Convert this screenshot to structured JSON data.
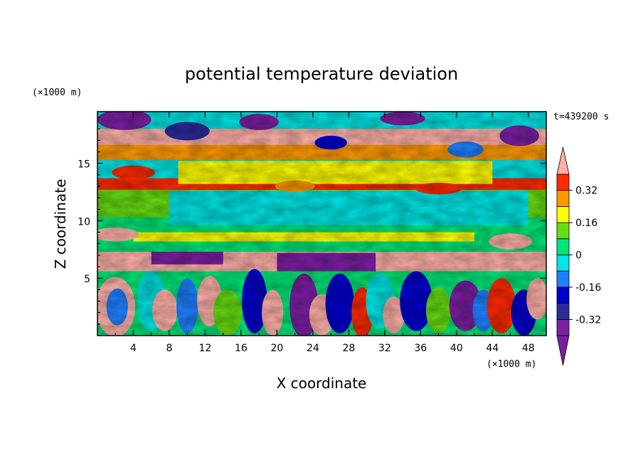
{
  "chart_data": {
    "type": "heatmap",
    "title": "potential temperature deviation",
    "xlabel": "X coordinate",
    "ylabel": "Z coordinate",
    "x_unit": "(×1000 m)",
    "y_unit": "(×1000 m)",
    "time_label": "t=439200 s",
    "xlim": [
      0,
      50
    ],
    "ylim": [
      0,
      19.5
    ],
    "x_ticks": [
      4,
      8,
      12,
      16,
      20,
      24,
      28,
      32,
      36,
      40,
      44,
      48
    ],
    "y_ticks": [
      5,
      10,
      15
    ],
    "colorbar": {
      "levels": [
        -0.4,
        -0.32,
        -0.24,
        -0.16,
        -0.08,
        0,
        0.08,
        0.16,
        0.24,
        0.32,
        0.4
      ],
      "labels": [
        "-0.32",
        "-0.16",
        "0",
        "0.16",
        "0.32"
      ],
      "label_values": [
        -0.32,
        -0.16,
        0,
        0.16,
        0.32
      ],
      "colors": [
        "#7b1fa2",
        "#2b2b9c",
        "#0000cc",
        "#1f7fff",
        "#00e5e5",
        "#00e676",
        "#66dd11",
        "#ffff00",
        "#ff9900",
        "#ff2a00",
        "#ffb0a8"
      ],
      "extend": "both"
    },
    "grid": false
  }
}
